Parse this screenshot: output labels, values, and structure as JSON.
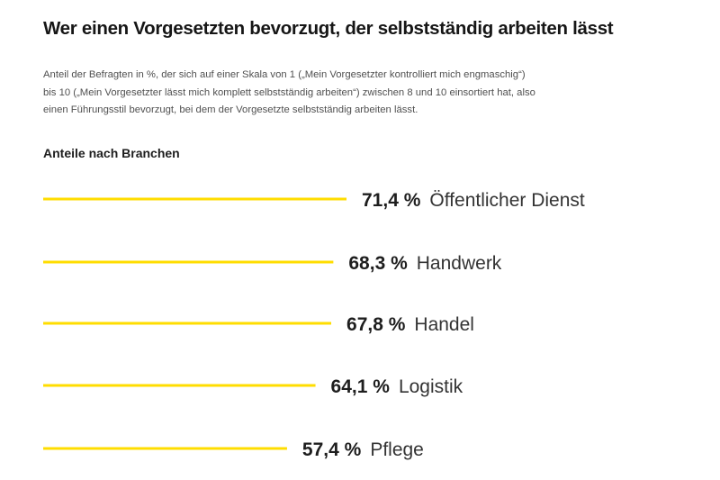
{
  "header": {
    "title": "Wer einen Vorgesetzten bevorzugt, der selbstständig arbeiten lässt",
    "subtitle_lines": [
      "Anteil der Befragten in %, der sich auf einer Skala von 1 („Mein Vorgesetzter kontrolliert mich engmaschig“)",
      "bis 10 („Mein Vorgesetzter lässt mich komplett selbstständig arbeiten“) zwischen 8 und 10 einsortiert hat, also",
      "einen Führungsstil bevorzugt, bei dem der Vorgesetzte selbstständig arbeiten lässt."
    ],
    "section_label": "Anteile nach Branchen"
  },
  "colors": {
    "bar": "#FFDD00",
    "value_text": "#1e1e1e",
    "category_text": "#333333"
  },
  "chart_data": {
    "type": "bar",
    "orientation": "horizontal",
    "title": "Anteile nach Branchen",
    "xlabel": "",
    "ylabel": "",
    "unit": "%",
    "xlim": [
      0,
      100
    ],
    "grid": false,
    "legend": "none",
    "categories": [
      "Öffentlicher Dienst",
      "Handwerk",
      "Handel",
      "Logistik",
      "Pflege"
    ],
    "values": [
      71.4,
      68.3,
      67.8,
      64.1,
      57.4
    ],
    "value_labels": [
      "71,4 %",
      "68,3 %",
      "67,8 %",
      "64,1 %",
      "57,4 %"
    ]
  }
}
